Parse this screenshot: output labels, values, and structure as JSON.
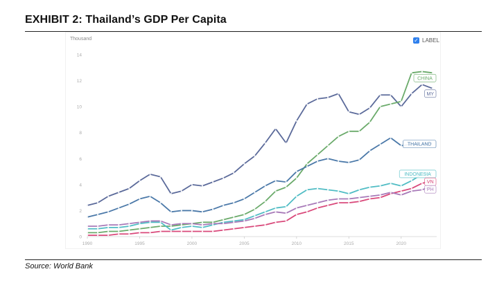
{
  "header": {
    "title": "EXHIBIT 2: Thailand’s GDP Per Capita"
  },
  "footer": {
    "source": "Source:  World Bank"
  },
  "legend": {
    "checkbox_label": "LABEL",
    "checked": true,
    "checkbox_color": "#2f80ed"
  },
  "chart_data": {
    "type": "line",
    "title": "",
    "xlabel": "",
    "ylabel": "Thousand",
    "xlim": [
      1990,
      2023
    ],
    "ylim": [
      0,
      14
    ],
    "x_ticks": [
      "1990",
      "1995",
      "2000",
      "2005",
      "2010",
      "2015",
      "2020"
    ],
    "y_ticks": [
      "0",
      "2",
      "4",
      "6",
      "8",
      "10",
      "12",
      "14"
    ],
    "grid": false,
    "x": [
      1990,
      1991,
      1992,
      1993,
      1994,
      1995,
      1996,
      1997,
      1998,
      1999,
      2000,
      2001,
      2002,
      2003,
      2004,
      2005,
      2006,
      2007,
      2008,
      2009,
      2010,
      2011,
      2012,
      2013,
      2014,
      2015,
      2016,
      2017,
      2018,
      2019,
      2020,
      2021,
      2022,
      2023
    ],
    "series": [
      {
        "name": "MY",
        "color": "#5b6a9a",
        "label_pos": "upper",
        "values": [
          2.4,
          2.6,
          3.1,
          3.4,
          3.7,
          4.3,
          4.8,
          4.6,
          3.3,
          3.5,
          4.0,
          3.9,
          4.2,
          4.5,
          4.9,
          5.6,
          6.2,
          7.2,
          8.3,
          7.2,
          8.9,
          10.2,
          10.6,
          10.7,
          11.0,
          9.6,
          9.4,
          9.9,
          10.9,
          10.9,
          10.0,
          11.0,
          11.7,
          11.4
        ]
      },
      {
        "name": "CHINA",
        "color": "#6aaa6a",
        "label_pos": "upper",
        "values": [
          0.3,
          0.3,
          0.4,
          0.4,
          0.5,
          0.6,
          0.7,
          0.8,
          0.8,
          0.9,
          1.0,
          1.1,
          1.1,
          1.3,
          1.5,
          1.7,
          2.1,
          2.7,
          3.5,
          3.8,
          4.5,
          5.6,
          6.3,
          7.0,
          7.7,
          8.1,
          8.1,
          8.8,
          10.0,
          10.2,
          10.4,
          12.6,
          12.7,
          12.6
        ]
      },
      {
        "name": "THAILAND",
        "color": "#4a78a8",
        "label_pos": "lower",
        "values": [
          1.5,
          1.7,
          1.9,
          2.2,
          2.5,
          2.9,
          3.1,
          2.6,
          1.9,
          2.0,
          2.0,
          1.9,
          2.1,
          2.4,
          2.6,
          2.9,
          3.4,
          3.9,
          4.3,
          4.2,
          5.0,
          5.4,
          5.8,
          6.0,
          5.8,
          5.7,
          5.9,
          6.6,
          7.1,
          7.6,
          7.0,
          7.1,
          7.1,
          7.2
        ]
      },
      {
        "name": "INDONESIA",
        "color": "#4fbcc4",
        "label_pos": "lower",
        "values": [
          0.6,
          0.6,
          0.7,
          0.7,
          0.8,
          1.0,
          1.1,
          1.1,
          0.5,
          0.7,
          0.8,
          0.7,
          0.9,
          1.1,
          1.2,
          1.3,
          1.6,
          1.9,
          2.2,
          2.3,
          3.1,
          3.6,
          3.7,
          3.6,
          3.5,
          3.3,
          3.6,
          3.8,
          3.9,
          4.1,
          3.9,
          4.3,
          4.8,
          4.9
        ]
      },
      {
        "name": "VN",
        "color": "#d9487a",
        "label_pos": "lower",
        "values": [
          0.1,
          0.1,
          0.1,
          0.2,
          0.2,
          0.3,
          0.3,
          0.4,
          0.4,
          0.4,
          0.4,
          0.4,
          0.4,
          0.5,
          0.6,
          0.7,
          0.8,
          0.9,
          1.1,
          1.2,
          1.7,
          1.9,
          2.2,
          2.4,
          2.6,
          2.6,
          2.7,
          2.9,
          3.0,
          3.3,
          3.5,
          3.7,
          4.1,
          4.3
        ]
      },
      {
        "name": "PH",
        "color": "#a779b8",
        "label_pos": "lower",
        "values": [
          0.8,
          0.8,
          0.9,
          0.9,
          1.0,
          1.1,
          1.2,
          1.2,
          0.9,
          1.0,
          1.0,
          0.9,
          1.0,
          1.0,
          1.1,
          1.2,
          1.4,
          1.7,
          1.9,
          1.8,
          2.2,
          2.4,
          2.6,
          2.8,
          2.9,
          2.9,
          3.0,
          3.1,
          3.2,
          3.4,
          3.2,
          3.5,
          3.6,
          3.9
        ]
      }
    ]
  }
}
